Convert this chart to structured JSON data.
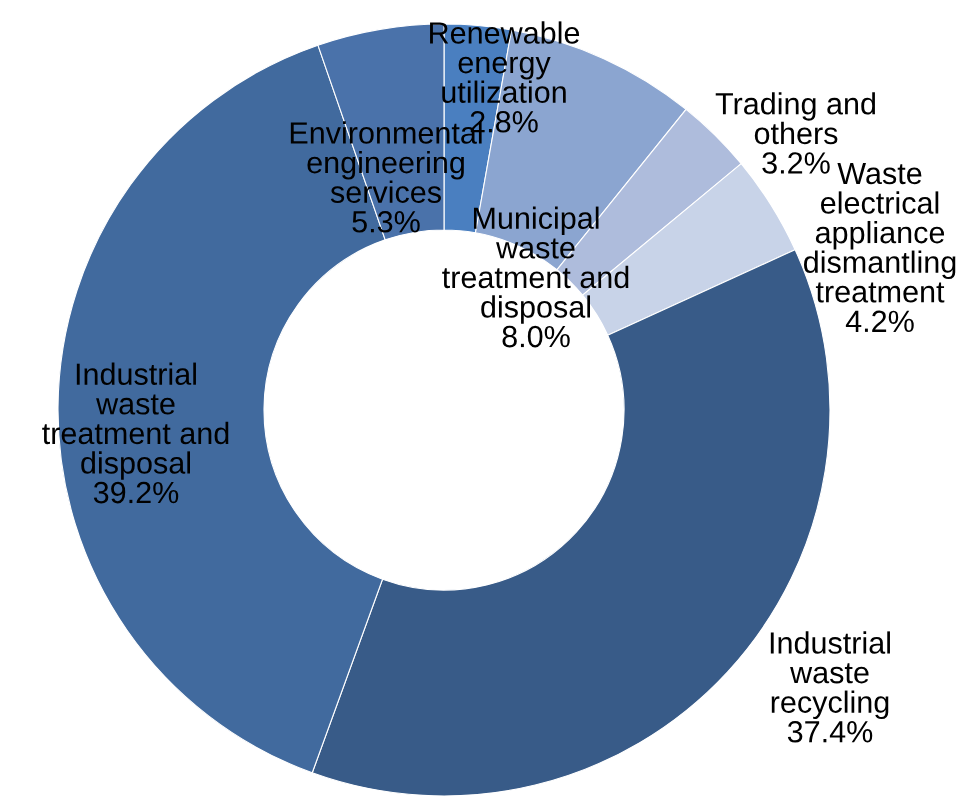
{
  "chart_data": {
    "type": "donut",
    "categories": [
      "Renewable\nenergy\nutilization",
      "Municipal\nwaste\ntreatment and\ndisposal",
      "Trading and\nothers",
      "Waste\nelectrical\nappliance\ndismantling\ntreatment",
      "Industrial\nwaste\nrecycling",
      "Industrial\nwaste\ntreatment and\ndisposal",
      "Environmental\nengineering\nservices"
    ],
    "values": [
      2.8,
      8.0,
      3.2,
      4.2,
      37.4,
      39.2,
      5.3
    ],
    "colors": [
      "#4a7fc0",
      "#8ba5d0",
      "#aebcdc",
      "#c8d3e8",
      "#385b88",
      "#416a9e",
      "#4a72aa"
    ],
    "value_labels": [
      "2.8%",
      "8.0%",
      "3.2%",
      "4.2%",
      "37.4%",
      "39.2%",
      "5.3%"
    ]
  }
}
